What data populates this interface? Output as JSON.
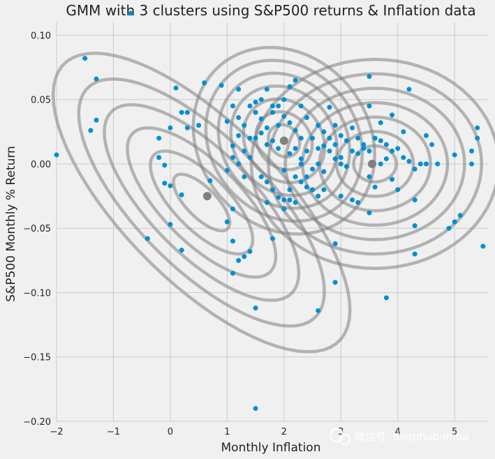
{
  "chart_data": {
    "type": "scatter",
    "title": "GMM with 3 clusters using S&P500 returns & Inflation data",
    "xlabel": "Monthly Inflation",
    "ylabel": "S&P500 Monthly % Return",
    "xlim": [
      -2,
      5.6
    ],
    "ylim": [
      -0.2,
      0.11
    ],
    "xticks": [
      -2,
      -1,
      0,
      1,
      2,
      3,
      4,
      5
    ],
    "yticks": [
      -0.2,
      -0.15,
      -0.1,
      -0.05,
      0.0,
      0.05,
      0.1
    ],
    "xtick_labels": [
      "−2",
      "−1",
      "0",
      "1",
      "2",
      "3",
      "4",
      "5"
    ],
    "ytick_labels": [
      "−0.20",
      "−0.15",
      "−0.10",
      "−0.05",
      "0.00",
      "0.05",
      "0.10"
    ],
    "grid": true,
    "point_color": "#008fd5",
    "contour_color": "#808080",
    "cluster_centers": [
      {
        "x": 0.65,
        "y": -0.025
      },
      {
        "x": 2.0,
        "y": 0.018
      },
      {
        "x": 3.55,
        "y": 0.0
      }
    ],
    "contours": [
      {
        "cx": 0.55,
        "cy": -0.03,
        "sx": 0.9,
        "sy": 0.04,
        "rho": -0.72,
        "levels": [
          0.55,
          1.0,
          1.45,
          1.9,
          2.4,
          2.9
        ]
      },
      {
        "cx": 2.0,
        "cy": 0.018,
        "sx": 0.55,
        "sy": 0.025,
        "rho": -0.15,
        "levels": [
          0.5,
          0.9,
          1.3,
          1.7,
          2.1,
          2.5,
          2.9
        ]
      },
      {
        "cx": 3.6,
        "cy": 0.0,
        "sx": 0.75,
        "sy": 0.028,
        "rho": 0.0,
        "levels": [
          0.5,
          0.9,
          1.3,
          1.7,
          2.1,
          2.5,
          2.9
        ]
      }
    ],
    "points": [
      [
        -1.5,
        0.082
      ],
      [
        -1.3,
        0.066
      ],
      [
        -1.3,
        0.034
      ],
      [
        -1.4,
        0.026
      ],
      [
        -2.0,
        0.007
      ],
      [
        -0.7,
        0.117
      ],
      [
        -0.2,
        0.02
      ],
      [
        -0.2,
        0.005
      ],
      [
        -0.1,
        -0.001
      ],
      [
        -0.1,
        -0.015
      ],
      [
        0.0,
        -0.017
      ],
      [
        0.0,
        0.028
      ],
      [
        0.1,
        0.059
      ],
      [
        0.2,
        0.04
      ],
      [
        0.3,
        0.04
      ],
      [
        0.3,
        0.028
      ],
      [
        0.2,
        -0.024
      ],
      [
        0.2,
        -0.067
      ],
      [
        0.0,
        -0.047
      ],
      [
        -0.4,
        -0.058
      ],
      [
        0.6,
        0.063
      ],
      [
        0.7,
        -0.013
      ],
      [
        0.9,
        0.061
      ],
      [
        0.5,
        0.03
      ],
      [
        1.0,
        0.033
      ],
      [
        1.1,
        0.045
      ],
      [
        1.2,
        0.058
      ],
      [
        1.1,
        0.014
      ],
      [
        1.0,
        -0.005
      ],
      [
        1.1,
        -0.035
      ],
      [
        1.1,
        -0.06
      ],
      [
        1.0,
        -0.045
      ],
      [
        1.1,
        -0.085
      ],
      [
        1.2,
        -0.075
      ],
      [
        1.3,
        -0.072
      ],
      [
        1.5,
        -0.112
      ],
      [
        1.5,
        -0.19
      ],
      [
        1.4,
        -0.068
      ],
      [
        1.2,
        0.0
      ],
      [
        1.3,
        -0.01
      ],
      [
        1.4,
        0.02
      ],
      [
        1.5,
        0.04
      ],
      [
        1.6,
        0.05
      ],
      [
        1.7,
        0.058
      ],
      [
        1.8,
        0.045
      ],
      [
        1.9,
        0.03
      ],
      [
        2.0,
        0.05
      ],
      [
        2.1,
        0.06
      ],
      [
        2.2,
        0.065
      ],
      [
        2.3,
        0.045
      ],
      [
        1.7,
        -0.03
      ],
      [
        1.8,
        -0.058
      ],
      [
        2.0,
        -0.035
      ],
      [
        2.1,
        -0.028
      ],
      [
        2.2,
        -0.01
      ],
      [
        2.3,
        0.0
      ],
      [
        2.4,
        0.01
      ],
      [
        2.5,
        0.02
      ],
      [
        2.6,
        0.03
      ],
      [
        2.7,
        0.025
      ],
      [
        2.8,
        0.044
      ],
      [
        2.9,
        0.03
      ],
      [
        3.0,
        0.022
      ],
      [
        3.1,
        0.018
      ],
      [
        3.2,
        0.028
      ],
      [
        3.3,
        0.02
      ],
      [
        3.4,
        0.012
      ],
      [
        3.5,
        0.01
      ],
      [
        3.6,
        0.02
      ],
      [
        3.7,
        0.018
      ],
      [
        3.8,
        0.015
      ],
      [
        3.9,
        0.01
      ],
      [
        4.0,
        0.012
      ],
      [
        4.1,
        0.005
      ],
      [
        4.2,
        0.002
      ],
      [
        4.3,
        -0.004
      ],
      [
        4.4,
        0.0
      ],
      [
        4.5,
        0.0
      ],
      [
        4.7,
        0.0
      ],
      [
        4.9,
        -0.05
      ],
      [
        5.0,
        -0.045
      ],
      [
        5.1,
        -0.04
      ],
      [
        5.0,
        0.007
      ],
      [
        5.3,
        0.01
      ],
      [
        5.4,
        0.02
      ],
      [
        5.4,
        0.028
      ],
      [
        5.3,
        0.0
      ],
      [
        5.5,
        -0.064
      ],
      [
        4.3,
        -0.048
      ],
      [
        4.3,
        -0.07
      ],
      [
        4.3,
        -0.028
      ],
      [
        3.8,
        -0.104
      ],
      [
        3.5,
        -0.038
      ],
      [
        3.3,
        -0.03
      ],
      [
        2.9,
        -0.062
      ],
      [
        2.9,
        -0.092
      ],
      [
        2.6,
        -0.114
      ],
      [
        2.6,
        -0.025
      ],
      [
        2.7,
        -0.02
      ],
      [
        3.0,
        -0.025
      ],
      [
        3.2,
        -0.028
      ],
      [
        3.5,
        0.068
      ],
      [
        4.2,
        0.058
      ],
      [
        4.1,
        0.025
      ],
      [
        3.9,
        0.038
      ],
      [
        3.7,
        0.032
      ],
      [
        3.5,
        0.045
      ],
      [
        3.6,
        0.02
      ],
      [
        2.4,
        0.036
      ],
      [
        2.3,
        0.02
      ],
      [
        2.2,
        0.026
      ],
      [
        2.1,
        0.008
      ],
      [
        2.0,
        -0.005
      ],
      [
        1.9,
        0.012
      ],
      [
        1.8,
        0.018
      ],
      [
        1.7,
        0.028
      ],
      [
        1.6,
        0.035
      ],
      [
        1.5,
        0.02
      ],
      [
        1.4,
        0.005
      ],
      [
        1.3,
        0.01
      ],
      [
        1.2,
        0.022
      ],
      [
        1.6,
        -0.01
      ],
      [
        1.7,
        -0.014
      ],
      [
        1.8,
        -0.02
      ],
      [
        1.9,
        -0.026
      ],
      [
        2.0,
        -0.028
      ],
      [
        2.1,
        -0.02
      ],
      [
        2.2,
        -0.03
      ],
      [
        2.3,
        -0.014
      ],
      [
        2.4,
        -0.01
      ],
      [
        2.5,
        -0.004
      ],
      [
        2.6,
        0.0
      ],
      [
        2.7,
        -0.006
      ],
      [
        2.8,
        0.01
      ],
      [
        2.9,
        0.015
      ],
      [
        3.0,
        0.005
      ],
      [
        3.1,
        -0.002
      ],
      [
        3.2,
        0.01
      ],
      [
        3.3,
        0.008
      ],
      [
        3.4,
        0.015
      ],
      [
        3.5,
        -0.01
      ],
      [
        3.6,
        -0.018
      ],
      [
        3.7,
        0.0
      ],
      [
        3.8,
        0.004
      ],
      [
        3.9,
        -0.012
      ],
      [
        4.0,
        -0.02
      ],
      [
        4.6,
        0.015
      ],
      [
        4.5,
        0.022
      ],
      [
        1.1,
        0.005
      ],
      [
        1.2,
        0.036
      ],
      [
        1.3,
        0.03
      ],
      [
        1.4,
        0.045
      ],
      [
        1.5,
        0.048
      ],
      [
        1.6,
        0.024
      ],
      [
        1.7,
        0.015
      ],
      [
        1.8,
        0.04
      ],
      [
        1.9,
        0.045
      ],
      [
        2.0,
        0.037
      ],
      [
        2.1,
        0.032
      ],
      [
        2.2,
        0.012
      ],
      [
        2.3,
        0.004
      ],
      [
        2.4,
        -0.018
      ],
      [
        2.5,
        -0.02
      ],
      [
        2.6,
        0.012
      ],
      [
        2.7,
        0.014
      ],
      [
        2.8,
        0.02
      ],
      [
        2.9,
        0.004
      ],
      [
        3.0,
        0.0
      ]
    ]
  }
}
